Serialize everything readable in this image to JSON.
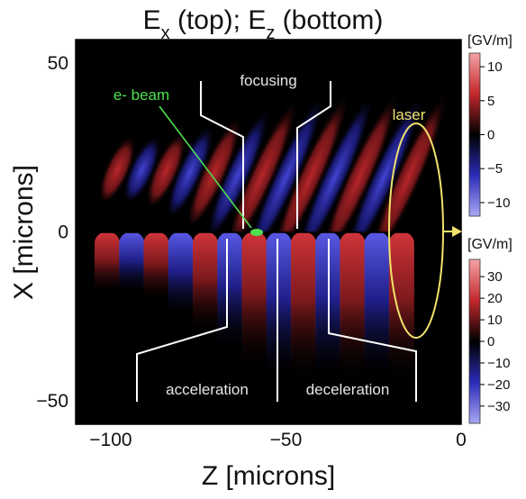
{
  "title": {
    "base": "E",
    "sub1": "x",
    "part1": " (top); E",
    "sub2": "z",
    "part2": " (bottom)"
  },
  "chart_data": {
    "type": "heatmap",
    "xlabel": "Z [microns]",
    "ylabel": "X [microns]",
    "xlim": [
      -110,
      0
    ],
    "ylim": [
      -57,
      57
    ],
    "x_ticks": [
      {
        "value": -100,
        "label": "−100"
      },
      {
        "value": -50,
        "label": "−50"
      },
      {
        "value": 0,
        "label": "0"
      }
    ],
    "y_ticks": [
      {
        "value": 50,
        "label": "50"
      },
      {
        "value": 0,
        "label": "0"
      },
      {
        "value": -50,
        "label": "−50"
      }
    ],
    "field_stripes_z": [
      -101,
      -94,
      -87,
      -80,
      -73,
      -66,
      -59,
      -52,
      -45,
      -38,
      -31,
      -24,
      -17
    ],
    "colorbars": [
      {
        "name": "top",
        "unit": "[GV/m]",
        "range": [
          -12,
          12
        ],
        "ticks": [
          {
            "value": 10,
            "label": "10"
          },
          {
            "value": 5,
            "label": "5"
          },
          {
            "value": 0,
            "label": "0"
          },
          {
            "value": -5,
            "label": "−5"
          },
          {
            "value": -10,
            "label": "−10"
          }
        ]
      },
      {
        "name": "bottom",
        "unit": "[GV/m]",
        "range": [
          -38,
          38
        ],
        "ticks": [
          {
            "value": 30,
            "label": "30"
          },
          {
            "value": 20,
            "label": "20"
          },
          {
            "value": 10,
            "label": "10"
          },
          {
            "value": 0,
            "label": "0"
          },
          {
            "value": -10,
            "label": "−10"
          },
          {
            "value": -20,
            "label": "−20"
          },
          {
            "value": -30,
            "label": "−30"
          }
        ]
      }
    ],
    "annotations": [
      {
        "text": "focusing",
        "x": -68,
        "y": 45
      },
      {
        "text": "e- beam",
        "x": -85,
        "y": 41
      },
      {
        "text": "laser",
        "x": -17,
        "y": 34
      },
      {
        "text": "acceleration",
        "x": -79,
        "y": -49
      },
      {
        "text": "deceleration",
        "x": -34,
        "y": -49
      }
    ],
    "e_beam": {
      "z": -58,
      "x": 0
    }
  },
  "colors": {
    "positive": "#c3282c",
    "negative": "#3535d8",
    "zero": "#000000",
    "e_beam": "#4ee04e",
    "laser": "#f1e36d",
    "region_lines": "#ffffff"
  }
}
